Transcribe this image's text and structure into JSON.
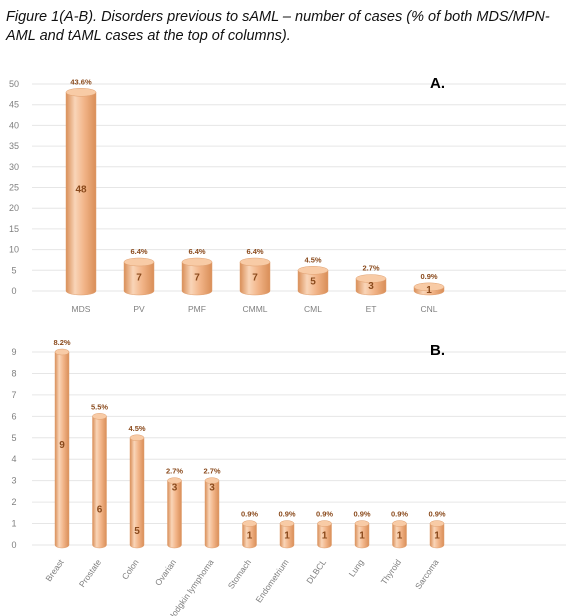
{
  "caption": "Figure 1(A-B). Disorders previous to sAML – number of cases (% of both MDS/MPN-AML and tAML cases at the top of columns).",
  "colors": {
    "body": "#f2b589",
    "light": "#f9d5b8",
    "dark": "#d98e58",
    "top": "#f8cba6",
    "grid": "#e6e6e6"
  },
  "chart_data": [
    {
      "type": "bar",
      "panel_label": "A.",
      "categories": [
        "MDS",
        "PV",
        "PMF",
        "CMML",
        "CML",
        "ET",
        "CNL"
      ],
      "values": [
        48,
        7,
        7,
        7,
        5,
        3,
        1
      ],
      "percent_labels": [
        "43.6%",
        "6.4%",
        "6.4%",
        "6.4%",
        "4.5%",
        "2.7%",
        "0.9%"
      ],
      "ylim": [
        0,
        50
      ],
      "yticks": [
        0,
        5,
        10,
        15,
        20,
        25,
        30,
        35,
        40,
        45,
        50
      ],
      "grid": true
    },
    {
      "type": "bar",
      "panel_label": "B.",
      "categories": [
        "Breast",
        "Prostate",
        "Colon",
        "Ovarian",
        "Hodgkin lymphoma",
        "Stomach",
        "Endometrium",
        "DLBCL",
        "Lung",
        "Thyroid",
        "Sarcoma"
      ],
      "values": [
        9,
        6,
        5,
        3,
        3,
        1,
        1,
        1,
        1,
        1,
        1
      ],
      "percent_labels": [
        "8.2%",
        "5.5%",
        "4.5%",
        "2.7%",
        "2.7%",
        "0.9%",
        "0.9%",
        "0.9%",
        "0.9%",
        "0.9%",
        "0.9%"
      ],
      "ylim": [
        0,
        9
      ],
      "yticks": [
        0,
        1,
        2,
        3,
        4,
        5,
        6,
        7,
        8,
        9
      ],
      "grid": true
    }
  ]
}
